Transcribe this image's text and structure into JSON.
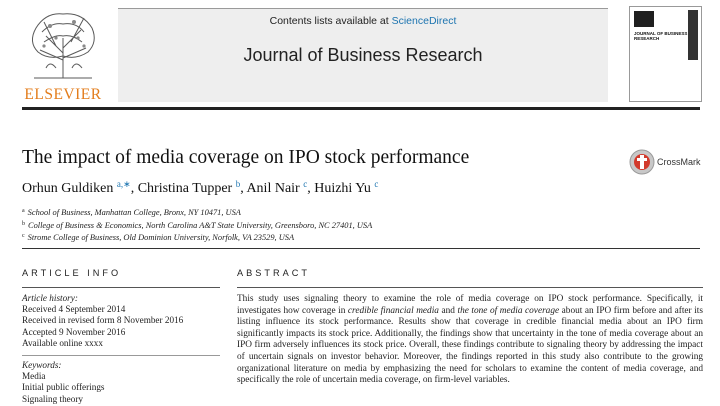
{
  "header": {
    "publisher_logo_text": "ELSEVIER",
    "contents_prefix": "Contents lists available at ",
    "contents_link": "ScienceDirect",
    "journal_title": "Journal of Business Research",
    "cover_title": "JOURNAL OF BUSINESS RESEARCH"
  },
  "article": {
    "title": "The impact of media coverage on IPO stock performance",
    "crossmark_label": "CrossMark",
    "authors": [
      {
        "name": "Orhun Guldiken",
        "sup": "a,∗",
        "sep": ", "
      },
      {
        "name": "Christina Tupper",
        "sup": "b",
        "sep": ", "
      },
      {
        "name": "Anil Nair",
        "sup": "c",
        "sep": ", "
      },
      {
        "name": "Huizhi Yu",
        "sup": "c",
        "sep": ""
      }
    ],
    "affiliations": [
      {
        "sup": "a",
        "text": "School of Business, Manhattan College, Bronx, NY 10471, USA"
      },
      {
        "sup": "b",
        "text": "College of Business & Economics, North Carolina A&T State University, Greensboro, NC 27401, USA"
      },
      {
        "sup": "c",
        "text": "Strome College of Business, Old Dominion University, Norfolk, VA 23529, USA"
      }
    ]
  },
  "article_info": {
    "heading": "ARTICLE INFO",
    "history_label": "Article history:",
    "history": [
      "Received 4 September 2014",
      "Received in revised form 8 November 2016",
      "Accepted 9 November 2016",
      "Available online xxxx"
    ],
    "keywords_label": "Keywords:",
    "keywords": [
      "Media",
      "Initial public offerings",
      "Signaling theory"
    ]
  },
  "abstract": {
    "heading": "ABSTRACT",
    "part1": "This study uses signaling theory to examine the role of media coverage on IPO stock performance. Specifically, it investigates how coverage in ",
    "em1": "credible financial media",
    "part2": " and ",
    "em2": "the tone of media coverage",
    "part3": " about an IPO firm before and after its listing influence its stock performance. Results show that coverage in credible financial media about an IPO firm significantly impacts its stock price. Additionally, the findings show that uncertainty in the tone of media coverage about an IPO firm adversely influences its stock price. Overall, these findings contribute to signaling theory by addressing the impact of uncertain signals on investor behavior. Moreover, the findings reported in this study also contribute to the growing organizational literature on media by emphasizing the need for scholars to examine the content of media coverage, and specifically the role of uncertain media coverage, on firm-level variables."
  }
}
